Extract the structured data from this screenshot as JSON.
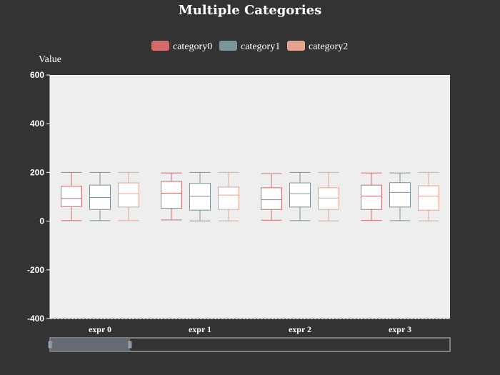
{
  "chart_data": {
    "type": "boxplot",
    "title": "Multiple Categories",
    "ylabel": "Value",
    "xlabel": "",
    "ylim": [
      -400,
      600
    ],
    "yticks": [
      600,
      400,
      200,
      0,
      -200,
      -400
    ],
    "categories": [
      "expr 0",
      "expr 1",
      "expr 2",
      "expr 3"
    ],
    "series": [
      {
        "name": "category0",
        "color": "#d46a6a",
        "boxes": [
          {
            "min": 2,
            "q1": 60,
            "median": 93,
            "q3": 143,
            "max": 200
          },
          {
            "min": 5,
            "q1": 53,
            "median": 115,
            "q3": 163,
            "max": 198
          },
          {
            "min": 4,
            "q1": 48,
            "median": 88,
            "q3": 137,
            "max": 195
          },
          {
            "min": 3,
            "q1": 48,
            "median": 103,
            "q3": 148,
            "max": 198
          }
        ]
      },
      {
        "name": "category1",
        "color": "#7b949b",
        "boxes": [
          {
            "min": 2,
            "q1": 48,
            "median": 97,
            "q3": 148,
            "max": 200
          },
          {
            "min": 1,
            "q1": 45,
            "median": 102,
            "q3": 155,
            "max": 200
          },
          {
            "min": 2,
            "q1": 58,
            "median": 113,
            "q3": 157,
            "max": 200
          },
          {
            "min": 2,
            "q1": 58,
            "median": 118,
            "q3": 158,
            "max": 198
          }
        ]
      },
      {
        "name": "category2",
        "color": "#e5a490",
        "boxes": [
          {
            "min": 2,
            "q1": 58,
            "median": 113,
            "q3": 157,
            "max": 200
          },
          {
            "min": 1,
            "q1": 48,
            "median": 107,
            "q3": 140,
            "max": 200
          },
          {
            "min": 1,
            "q1": 48,
            "median": 95,
            "q3": 137,
            "max": 200
          },
          {
            "min": 1,
            "q1": 45,
            "median": 103,
            "q3": 145,
            "max": 200
          }
        ]
      }
    ],
    "legend_position": "top-center",
    "grid": false,
    "datazoom": {
      "start": 0,
      "end": 20
    }
  },
  "colors": {
    "background": "#333333",
    "plot_background": "#eeeeee",
    "text": "#ffffff"
  }
}
